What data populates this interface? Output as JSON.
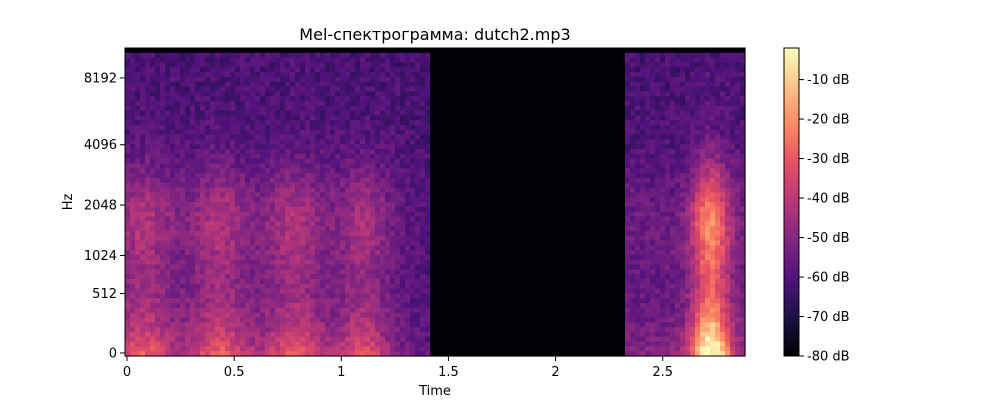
{
  "chart_data": {
    "type": "heatmap",
    "title": "Mel-спектрограмма: dutch2.mp3",
    "xlabel": "Time",
    "ylabel": "Hz",
    "xlim": [
      0,
      2.88
    ],
    "x_ticks": [
      {
        "value": 0,
        "label": "0"
      },
      {
        "value": 0.5,
        "label": "0.5"
      },
      {
        "value": 1,
        "label": "1"
      },
      {
        "value": 1.5,
        "label": "1.5"
      },
      {
        "value": 2,
        "label": "2"
      },
      {
        "value": 2.5,
        "label": "2.5"
      }
    ],
    "y_scale": "mel",
    "ylim_hz": [
      0,
      11025
    ],
    "y_ticks": [
      {
        "value": 0,
        "label": "0"
      },
      {
        "value": 512,
        "label": "512"
      },
      {
        "value": 1024,
        "label": "1024"
      },
      {
        "value": 2048,
        "label": "2048"
      },
      {
        "value": 4096,
        "label": "4096"
      },
      {
        "value": 8192,
        "label": "8192"
      }
    ],
    "colormap": "magma",
    "colorbar": {
      "range_db": [
        -80,
        -2
      ],
      "ticks": [
        {
          "value": -10,
          "label": "-10 dB"
        },
        {
          "value": -20,
          "label": "-20 dB"
        },
        {
          "value": -30,
          "label": "-30 dB"
        },
        {
          "value": -40,
          "label": "-40 dB"
        },
        {
          "value": -50,
          "label": "-50 dB"
        },
        {
          "value": -60,
          "label": "-60 dB"
        },
        {
          "value": -70,
          "label": "-70 dB"
        },
        {
          "value": -80,
          "label": "-80 dB"
        }
      ]
    },
    "segments": [
      {
        "name": "speech-1",
        "t_start": 0,
        "t_end": 1.41,
        "peak_db": -22,
        "floor_db": -62
      },
      {
        "name": "silence",
        "t_start": 1.41,
        "t_end": 2.33,
        "level_db": -80
      },
      {
        "name": "speech-2",
        "t_start": 2.33,
        "t_end": 2.88,
        "peak_db": -5,
        "floor_db": -62
      }
    ]
  }
}
